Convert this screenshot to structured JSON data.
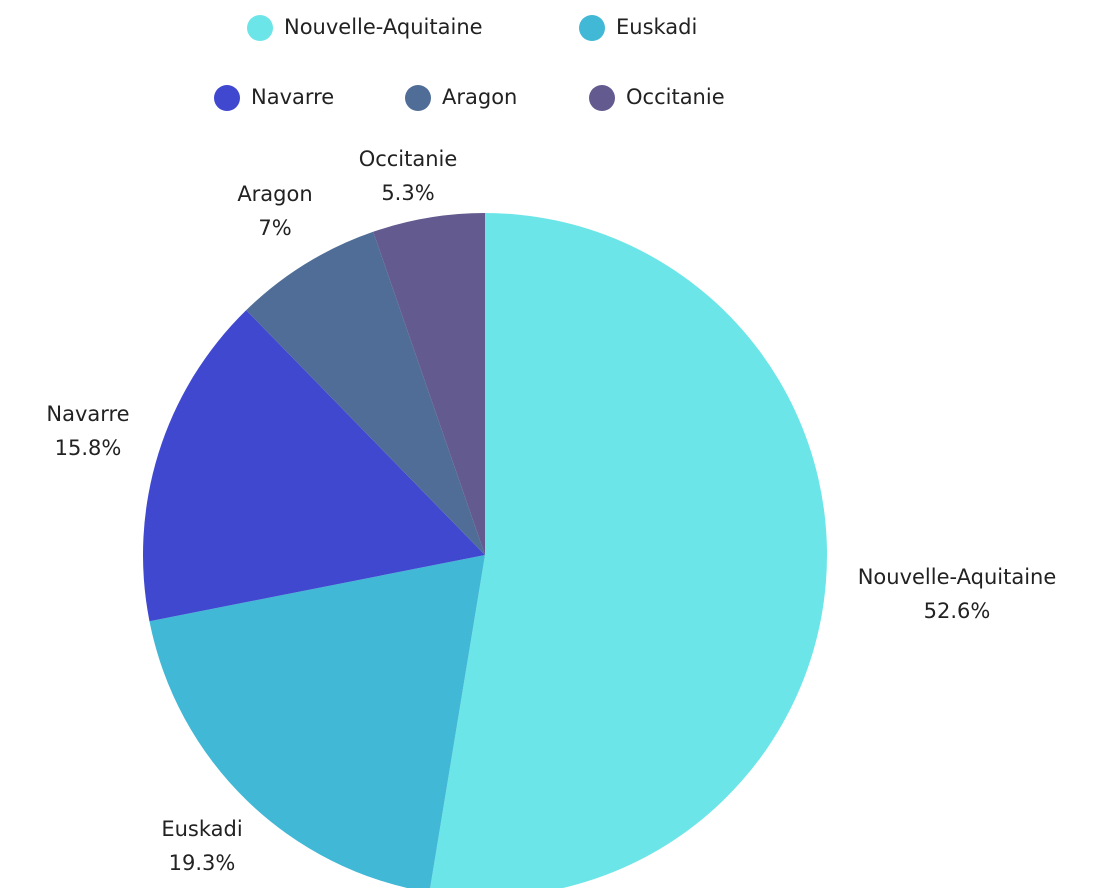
{
  "chart_data": {
    "type": "pie",
    "categories": [
      "Nouvelle-Aquitaine",
      "Euskadi",
      "Navarre",
      "Aragon",
      "Occitanie"
    ],
    "values": [
      52.6,
      19.3,
      15.8,
      7,
      5.3
    ],
    "value_labels": [
      "52.6%",
      "19.3%",
      "15.8%",
      "7%",
      "5.3%"
    ],
    "colors": [
      "#6ce5e8",
      "#41b8d5",
      "#3f48cf",
      "#4f6d96",
      "#635a8f"
    ]
  }
}
